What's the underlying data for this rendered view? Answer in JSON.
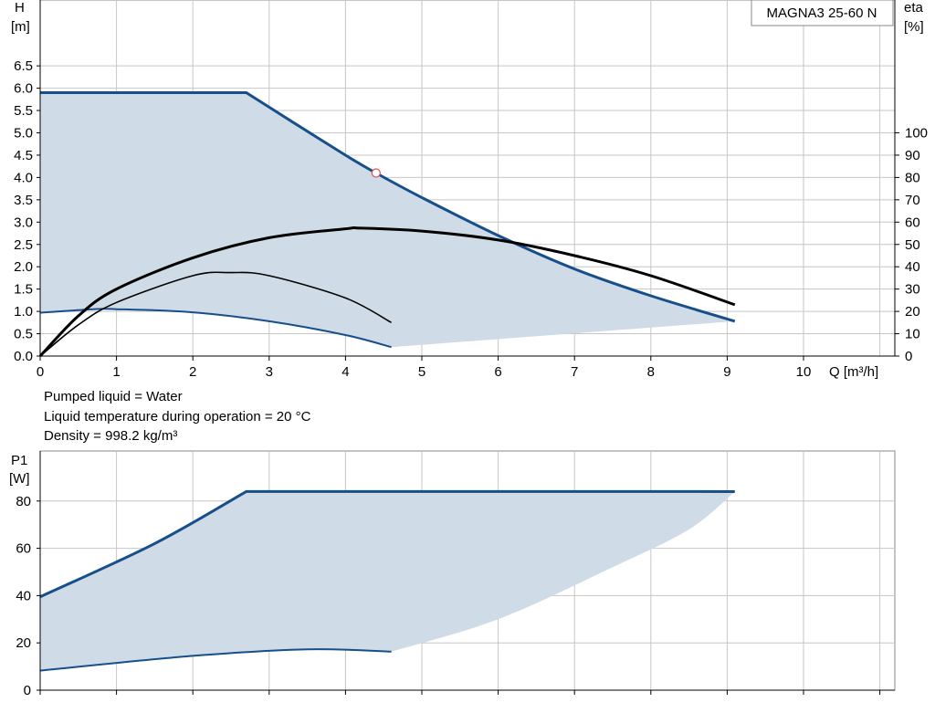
{
  "notes": [
    "Pumped liquid = Water",
    "Liquid temperature during operation = 20 °C",
    "Density = 998.2 kg/m³"
  ],
  "colors": {
    "curve": "#174f8a",
    "area": "#cfdbe6",
    "eff": "#000000",
    "grid": "#c6c6c6",
    "marker": "#e05050"
  },
  "chart_data": [
    {
      "type": "line",
      "title": "MAGNA3 25-60 N",
      "xlabel": "Q [m³/h]",
      "ylabel": [
        "H",
        "[m]"
      ],
      "y2label": [
        "eta",
        "[%]"
      ],
      "xlim": [
        0,
        11
      ],
      "ylim": [
        0,
        8
      ],
      "y2lim": [
        0,
        160
      ],
      "xticks": [
        "0",
        "1",
        "2",
        "3",
        "4",
        "5",
        "6",
        "7",
        "8",
        "9",
        "10"
      ],
      "yticks": [
        "0.0",
        "0.5",
        "1.0",
        "1.5",
        "2.0",
        "2.5",
        "3.0",
        "3.5",
        "4.0",
        "4.5",
        "5.0",
        "5.5",
        "6.0",
        "6.5"
      ],
      "y2ticks": [
        "0",
        "10",
        "20",
        "30",
        "40",
        "50",
        "60",
        "70",
        "80",
        "90",
        "100"
      ],
      "grid": true,
      "series": [
        {
          "role": "max curve H",
          "x": [
            0,
            2.7,
            3.3,
            4.0,
            4.4,
            5.0,
            6.0,
            7.0,
            8.0,
            9.1
          ],
          "y": [
            5.9,
            5.9,
            5.25,
            4.5,
            4.1,
            3.55,
            2.7,
            1.95,
            1.35,
            0.78
          ]
        },
        {
          "role": "min curve H",
          "x": [
            0,
            0.7,
            1.0,
            2.0,
            3.0,
            4.0,
            4.6
          ],
          "y": [
            0.97,
            1.05,
            1.05,
            0.98,
            0.78,
            0.47,
            0.2
          ]
        },
        {
          "role": "lower boundary H",
          "x": [
            4.6,
            9.1
          ],
          "y": [
            0.2,
            0.78
          ]
        },
        {
          "role": "efficiency max (eta %)",
          "x": [
            0,
            0.5,
            1,
            2,
            3,
            4,
            4.2,
            5,
            6,
            7,
            8,
            9.1
          ],
          "y": [
            0,
            18,
            30,
            44,
            53,
            57,
            57.3,
            56,
            52,
            45,
            36,
            23
          ]
        },
        {
          "role": "efficiency min (eta %)",
          "x": [
            0,
            0.5,
            1,
            2,
            2.5,
            3,
            4,
            4.6
          ],
          "y": [
            0,
            14,
            24,
            36,
            37.4,
            36,
            26,
            15
          ]
        }
      ],
      "operating_point": {
        "x": 4.4,
        "y": 4.1
      }
    },
    {
      "type": "line",
      "ylabel": [
        "P1",
        "[W]"
      ],
      "xlim": [
        0,
        11
      ],
      "ylim": [
        0,
        95
      ],
      "yticks": [
        "0",
        "20",
        "40",
        "60",
        "80"
      ],
      "grid": true,
      "series": [
        {
          "role": "max curve P1",
          "x": [
            0,
            1.5,
            2.7,
            9.1
          ],
          "y": [
            39.5,
            62,
            84,
            84
          ]
        },
        {
          "role": "min curve P1",
          "x": [
            0,
            2.0,
            3.5,
            4.6
          ],
          "y": [
            8.3,
            14.5,
            17.3,
            16.3
          ]
        },
        {
          "role": "lower boundary P1",
          "x": [
            4.6,
            6.0,
            7.5,
            8.5,
            9.1
          ],
          "y": [
            16.3,
            30,
            52,
            68,
            84
          ]
        }
      ]
    }
  ]
}
